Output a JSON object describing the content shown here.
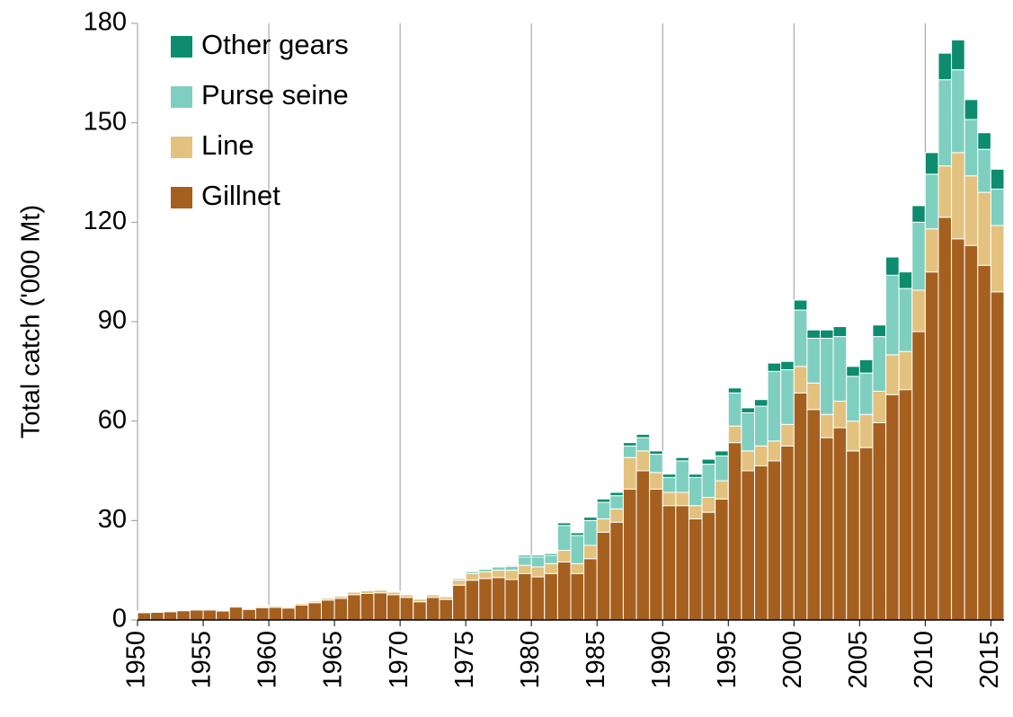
{
  "chart_data": {
    "type": "stacked_bar",
    "y_label": "Total catch ('000 Mt)",
    "x": [
      1950,
      1951,
      1952,
      1953,
      1954,
      1955,
      1956,
      1957,
      1958,
      1959,
      1960,
      1961,
      1962,
      1963,
      1964,
      1965,
      1966,
      1967,
      1968,
      1969,
      1970,
      1971,
      1972,
      1973,
      1974,
      1975,
      1976,
      1977,
      1978,
      1979,
      1980,
      1981,
      1982,
      1983,
      1984,
      1985,
      1986,
      1987,
      1988,
      1989,
      1990,
      1991,
      1992,
      1993,
      1994,
      1995,
      1996,
      1997,
      1998,
      1999,
      2000,
      2001,
      2002,
      2003,
      2004,
      2005,
      2006,
      2007,
      2008,
      2009,
      2010,
      2011,
      2012,
      2013,
      2014,
      2015
    ],
    "xlim": [
      1950,
      2016
    ],
    "xticks": [
      1950,
      1955,
      1960,
      1965,
      1970,
      1975,
      1980,
      1985,
      1990,
      1995,
      2000,
      2005,
      2010,
      2015
    ],
    "x_grid_lines": [
      1960,
      1970,
      1980,
      1990,
      2000,
      2010
    ],
    "ylim": [
      0,
      180
    ],
    "yticks": [
      0,
      30,
      60,
      90,
      120,
      150,
      180
    ],
    "legend": "top-left",
    "series": [
      {
        "name": "Gillnet",
        "color": "#a5601f",
        "values": [
          2.2,
          2.3,
          2.5,
          2.8,
          3.0,
          3.0,
          2.7,
          3.9,
          3.2,
          3.7,
          3.8,
          3.6,
          4.5,
          5.2,
          6.0,
          6.5,
          7.6,
          8.0,
          8.2,
          7.6,
          6.8,
          5.5,
          6.8,
          6.2,
          10.5,
          12,
          12.5,
          12.8,
          12.2,
          14,
          13,
          14,
          17.5,
          14,
          18.5,
          26.5,
          29.5,
          39.5,
          45,
          39.5,
          34.5,
          34.5,
          30.5,
          32.5,
          36.5,
          53.5,
          45,
          46.5,
          48,
          52.5,
          68.5,
          63.5,
          55,
          58,
          51,
          52,
          59.5,
          68,
          69.5,
          87,
          105,
          121.5,
          115,
          113,
          107,
          99
        ]
      },
      {
        "name": "Line",
        "color": "#e3c27f",
        "values": [
          0.2,
          0.2,
          0.2,
          0.2,
          0.2,
          0.3,
          0.3,
          0.3,
          0.3,
          0.4,
          0.4,
          0.4,
          0.5,
          0.5,
          0.6,
          0.7,
          0.8,
          0.8,
          0.8,
          0.8,
          0.8,
          0.8,
          0.8,
          0.8,
          1.5,
          2,
          2,
          2.2,
          2.8,
          2.5,
          3,
          3,
          3.5,
          3,
          4,
          4,
          4,
          9.5,
          6,
          5,
          4,
          4,
          4,
          4.5,
          5.5,
          5,
          6,
          6,
          6,
          6.5,
          8,
          8,
          7,
          8,
          9,
          10,
          9.5,
          12,
          11.5,
          12.5,
          13,
          15.5,
          26,
          21,
          22,
          20
        ]
      },
      {
        "name": "Purse seine",
        "color": "#7fcfc0",
        "values": [
          0.1,
          0.1,
          0.1,
          0.1,
          0.1,
          0.1,
          0.1,
          0.1,
          0.1,
          0.1,
          0.1,
          0.1,
          0.1,
          0.1,
          0.1,
          0.1,
          0.1,
          0.2,
          0.2,
          0.2,
          0.2,
          0.3,
          0.3,
          0.3,
          0.5,
          0.6,
          0.8,
          1,
          1.2,
          2.5,
          3,
          2.5,
          7.5,
          8.5,
          7.5,
          5,
          4,
          3.5,
          4,
          5.5,
          4.5,
          9.5,
          8.5,
          10,
          7.5,
          10,
          11.5,
          12,
          21,
          16.5,
          17,
          13.5,
          23,
          19.5,
          13.5,
          12.5,
          16.5,
          24,
          19,
          20.5,
          16.5,
          26,
          25,
          17,
          13,
          11
        ]
      },
      {
        "name": "Other gears",
        "color": "#0d8c6f",
        "values": [
          0.1,
          0.1,
          0.1,
          0.1,
          0.1,
          0.1,
          0.1,
          0.1,
          0.1,
          0.1,
          0.1,
          0.1,
          0.1,
          0.1,
          0.1,
          0.1,
          0.1,
          0.1,
          0.1,
          0.1,
          0.1,
          0.1,
          0.1,
          0.1,
          0.2,
          0.2,
          0.2,
          0.2,
          0.3,
          0.5,
          0.5,
          0.5,
          0.8,
          0.8,
          1,
          1,
          1,
          1,
          1,
          1,
          1,
          1,
          1,
          1.5,
          1.5,
          1.5,
          1.5,
          2,
          2.5,
          2.5,
          3,
          2.5,
          2.5,
          3,
          3,
          4,
          3.5,
          5.5,
          5,
          5,
          6.5,
          8,
          9,
          6,
          5,
          6
        ]
      }
    ]
  }
}
